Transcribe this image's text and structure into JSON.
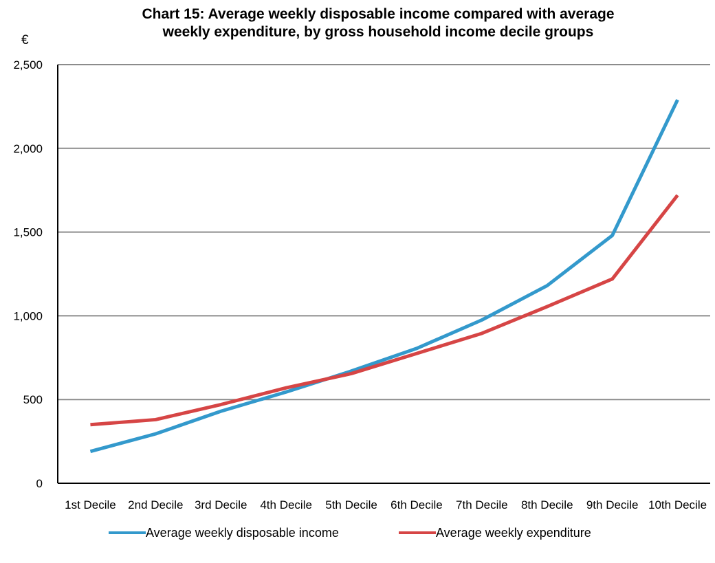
{
  "chart_data": {
    "type": "line",
    "title_lines": [
      "Chart 15:  Average  weekly  disposable  income  compared  with  average",
      "weekly  expenditure,  by  gross  household  income  decile  groups"
    ],
    "unit_label": "€",
    "categories": [
      "1st Decile",
      "2nd Decile",
      "3rd Decile",
      "4th Decile",
      "5th Decile",
      "6th Decile",
      "7th Decile",
      "8th Decile",
      "9th Decile",
      "10th Decile"
    ],
    "y_ticks": [
      {
        "value": 0,
        "label": "0"
      },
      {
        "value": 500,
        "label": "500"
      },
      {
        "value": 1000,
        "label": "1,000"
      },
      {
        "value": 1500,
        "label": "1,500"
      },
      {
        "value": 2000,
        "label": "2,000"
      },
      {
        "value": 2500,
        "label": "2,500"
      }
    ],
    "ylim": [
      0,
      2500
    ],
    "grid": true,
    "legend_position": "bottom",
    "series": [
      {
        "name": "Average weekly disposable income",
        "color": "#3399cc",
        "values": [
          190,
          295,
          430,
          545,
          670,
          805,
          975,
          1180,
          1480,
          2290
        ]
      },
      {
        "name": "Average weekly expenditure",
        "color": "#d64545",
        "values": [
          350,
          380,
          470,
          570,
          655,
          775,
          895,
          1055,
          1220,
          1720
        ]
      }
    ]
  }
}
